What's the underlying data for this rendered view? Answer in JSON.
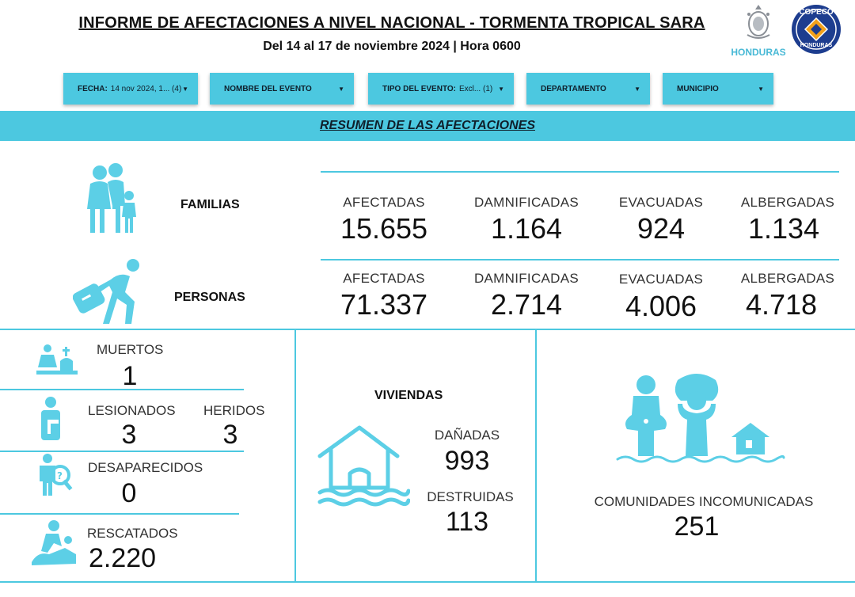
{
  "header": {
    "title": "INFORME DE AFECTACIONES A NIVEL NACIONAL - TORMENTA TROPICAL SARA",
    "subtitle": "Del 14 al 17 de noviembre 2024 | Hora 0600",
    "logo_honduras": "HONDURAS",
    "logo_copeco_top": "COPECO",
    "logo_copeco_bottom": "HONDURAS"
  },
  "filters": [
    {
      "label": "FECHA:",
      "value": "14 nov 2024, 1... (4)"
    },
    {
      "label": "NOMBRE DEL EVENTO",
      "value": ""
    },
    {
      "label": "TIPO DEL EVENTO:",
      "value": "Excl... (1)"
    },
    {
      "label": "DEPARTAMENTO",
      "value": ""
    },
    {
      "label": "MUNICIPIO",
      "value": ""
    }
  ],
  "banner": "RESUMEN DE LAS AFECTACIONES",
  "familias": {
    "label": "FAMILIAS",
    "stats": [
      {
        "label": "AFECTADAS",
        "value": "15.655"
      },
      {
        "label": "DAMNIFICADAS",
        "value": "1.164"
      },
      {
        "label": "EVACUADAS",
        "value": "924"
      },
      {
        "label": "ALBERGADAS",
        "value": "1.134"
      }
    ]
  },
  "personas": {
    "label": "PERSONAS",
    "stats": [
      {
        "label": "AFECTADAS",
        "value": "71.337"
      },
      {
        "label": "DAMNIFICADAS",
        "value": "2.714"
      },
      {
        "label": "EVACUADAS",
        "value": "4.006"
      },
      {
        "label": "ALBERGADAS",
        "value": "4.718"
      }
    ]
  },
  "left_panel": {
    "muertos": {
      "label": "MUERTOS",
      "value": "1"
    },
    "lesionados": {
      "label": "LESIONADOS",
      "value": "3"
    },
    "heridos": {
      "label": "HERIDOS",
      "value": "3"
    },
    "desaparecidos": {
      "label": "DESAPARECIDOS",
      "value": "0"
    },
    "rescatados": {
      "label": "RESCATADOS",
      "value": "2.220"
    }
  },
  "viviendas": {
    "title": "VIVIENDAS",
    "danadas_label": "DAÑADAS",
    "danadas_value": "993",
    "destruidas_label": "DESTRUIDAS",
    "destruidas_value": "113"
  },
  "comunidades": {
    "label": "COMUNIDADES INCOMUNICADAS",
    "value": "251"
  },
  "colors": {
    "accent": "#4cc8e0",
    "icon": "#5ccfe6",
    "text": "#111111"
  }
}
